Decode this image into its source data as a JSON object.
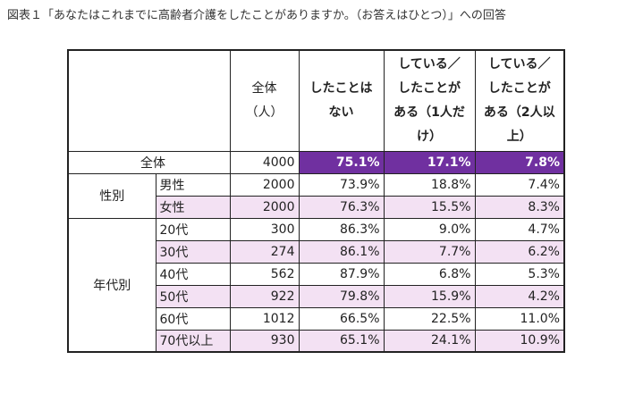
{
  "title": "図表１「あなたはこれまでに高齢者介護をしたことがありますか。（お答えはひとつ）」への回答",
  "colors": {
    "highlight": "#7030a0",
    "alt_row": "#f3e1f3"
  },
  "headers": [
    "全体\n（人）",
    "したことは\nない",
    "している／\nしたことが\nある（1人だ\nけ）",
    "している／\nしたことが\nある（2人以\n上）"
  ],
  "total": {
    "label": "全体",
    "n": "4000",
    "values": [
      "75.1%",
      "17.1%",
      "7.8%"
    ]
  },
  "groups": [
    {
      "label": "性別",
      "rows": [
        {
          "label": "男性",
          "n": "2000",
          "values": [
            "73.9%",
            "18.8%",
            "7.4%"
          ]
        },
        {
          "label": "女性",
          "n": "2000",
          "values": [
            "76.3%",
            "15.5%",
            "8.3%"
          ]
        }
      ]
    },
    {
      "label": "年代別",
      "rows": [
        {
          "label": "20代",
          "n": "300",
          "values": [
            "86.3%",
            "9.0%",
            "4.7%"
          ]
        },
        {
          "label": "30代",
          "n": "274",
          "values": [
            "86.1%",
            "7.7%",
            "6.2%"
          ]
        },
        {
          "label": "40代",
          "n": "562",
          "values": [
            "87.9%",
            "6.8%",
            "5.3%"
          ]
        },
        {
          "label": "50代",
          "n": "922",
          "values": [
            "79.8%",
            "15.9%",
            "4.2%"
          ]
        },
        {
          "label": "60代",
          "n": "1012",
          "values": [
            "66.5%",
            "22.5%",
            "11.0%"
          ]
        },
        {
          "label": "70代以上",
          "n": "930",
          "values": [
            "65.1%",
            "24.1%",
            "10.9%"
          ]
        }
      ]
    }
  ]
}
